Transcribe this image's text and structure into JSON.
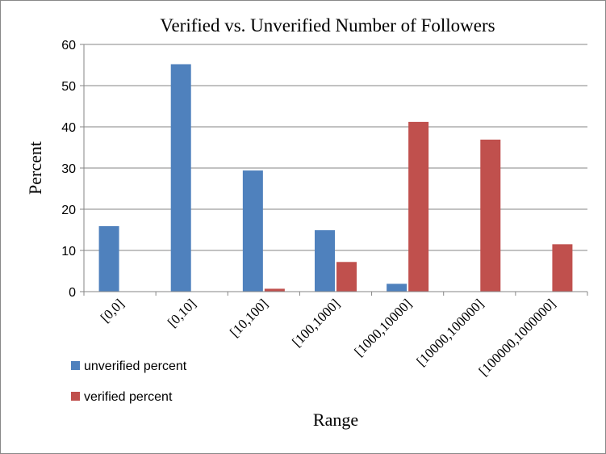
{
  "chart_data": {
    "type": "bar",
    "title": "Verified vs. Unverified  Number of Followers",
    "xlabel": "Range",
    "ylabel": "Percent",
    "ylim": [
      0,
      60
    ],
    "yticks": [
      0,
      10,
      20,
      30,
      40,
      50,
      60
    ],
    "grid": true,
    "legend_position": "bottom-left",
    "categories": [
      "[0,0]",
      "[0,10]",
      "[10,100]",
      "[100,1000]",
      "[1000,10000]",
      "[10000,100000]",
      "[100000,1000000]"
    ],
    "series": [
      {
        "name": "unverified percent",
        "color": "#4f81bd",
        "values": [
          15.9,
          55.2,
          29.4,
          14.9,
          1.9,
          0,
          0
        ]
      },
      {
        "name": "verified percent",
        "color": "#c0504d",
        "values": [
          0,
          0,
          0.7,
          7.2,
          41.2,
          36.9,
          11.5
        ]
      }
    ]
  }
}
